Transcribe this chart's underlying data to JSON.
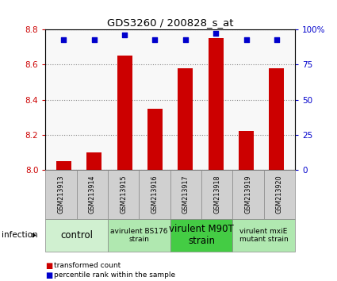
{
  "title": "GDS3260 / 200828_s_at",
  "samples": [
    "GSM213913",
    "GSM213914",
    "GSM213915",
    "GSM213916",
    "GSM213917",
    "GSM213918",
    "GSM213919",
    "GSM213920"
  ],
  "red_values": [
    8.05,
    8.1,
    8.65,
    8.35,
    8.58,
    8.75,
    8.22,
    8.58
  ],
  "blue_values": [
    93,
    93,
    96,
    93,
    93,
    97,
    93,
    93
  ],
  "ylim_left": [
    8.0,
    8.8
  ],
  "ylim_right": [
    0,
    100
  ],
  "yticks_left": [
    8.0,
    8.2,
    8.4,
    8.6,
    8.8
  ],
  "yticks_right": [
    0,
    25,
    50,
    75,
    100
  ],
  "groups": [
    {
      "label": "control",
      "span": [
        0,
        2
      ],
      "color": "#d0f0d0",
      "fontsize": 8.5
    },
    {
      "label": "avirulent BS176\nstrain",
      "span": [
        2,
        4
      ],
      "color": "#b0e8b0",
      "fontsize": 6.5
    },
    {
      "label": "virulent M90T\nstrain",
      "span": [
        4,
        6
      ],
      "color": "#44cc44",
      "fontsize": 8.5
    },
    {
      "label": "virulent mxiE\nmutant strain",
      "span": [
        6,
        8
      ],
      "color": "#b0e8b0",
      "fontsize": 6.5
    }
  ],
  "legend_label_red": "transformed count",
  "legend_label_blue": "percentile rank within the sample",
  "infection_label": "infection",
  "bar_color": "#cc0000",
  "dot_color": "#0000cc",
  "bar_bottom": 8.0,
  "grid_color": "#888888",
  "background_color": "#ffffff",
  "tick_color_left": "#cc0000",
  "tick_color_right": "#0000cc",
  "sample_box_color": "#d0d0d0"
}
